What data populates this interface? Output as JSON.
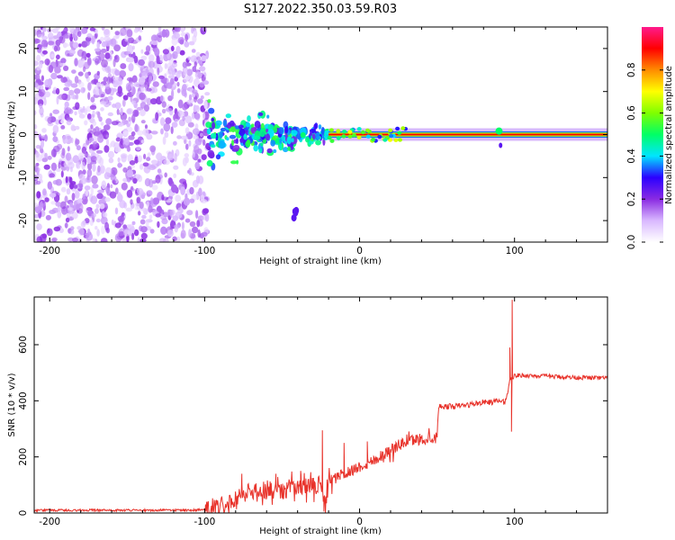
{
  "title": "S127.2022.350.03.59.R03",
  "chart_data": [
    {
      "type": "heatmap",
      "xlabel": "Height of straight line (km)",
      "ylabel": "Frequency (Hz)",
      "xlim": [
        -210,
        160
      ],
      "ylim": [
        -25,
        25
      ],
      "xticks": [
        -200,
        -100,
        0,
        100
      ],
      "yticks": [
        -20,
        -10,
        0,
        10,
        20
      ],
      "colorbar": {
        "label": "Normalized spectral amplitude",
        "range": [
          0.0,
          1.0
        ],
        "ticks": [
          0.0,
          0.2,
          0.4,
          0.6,
          0.8
        ],
        "colormap": [
          "#ffffff",
          "#d9b8ff",
          "#8a2be2",
          "#2b00ff",
          "#00e5ff",
          "#00ff66",
          "#7fff00",
          "#ffff00",
          "#ff8c00",
          "#ff0000",
          "#ff1a8c"
        ]
      },
      "features": [
        {
          "region": "noise",
          "x_range": [
            -210,
            -98
          ],
          "freq_range": [
            -25,
            25
          ],
          "amplitude": [
            0.05,
            0.2
          ]
        },
        {
          "region": "signal_onset",
          "x_range": [
            -98,
            -20
          ],
          "freq_center": 0,
          "spread_hz": 8,
          "amplitude": [
            0.2,
            0.55
          ]
        },
        {
          "region": "secondary_blob",
          "x": -42,
          "freq": -18.5,
          "amplitude": 0.2
        },
        {
          "region": "carrier",
          "x_range": [
            -20,
            160
          ],
          "freq_center": 0,
          "amplitude": [
            0.9,
            1.0
          ]
        },
        {
          "region": "carrier_wobble",
          "x": 90,
          "freq": 0.8,
          "amplitude": 0.5
        }
      ]
    },
    {
      "type": "line",
      "xlabel": "Height of straight line (km)",
      "ylabel": "SNR (10 * v/v)",
      "xlim": [
        -210,
        160
      ],
      "ylim": [
        0,
        770
      ],
      "xticks": [
        -200,
        -100,
        0,
        100
      ],
      "yticks": [
        0,
        200,
        400,
        600
      ],
      "color": "#e8322a",
      "series": [
        {
          "x": [
            -210,
            -150,
            -110,
            -100,
            -90,
            -80,
            -75,
            -70,
            -60,
            -50,
            -40,
            -30,
            -25,
            -22,
            -20,
            -10,
            0,
            10,
            20,
            30,
            40,
            50,
            51,
            60,
            70,
            80,
            85,
            90,
            93,
            95,
            97,
            98,
            99,
            100,
            110,
            130,
            160
          ],
          "y": [
            10,
            10,
            10,
            12,
            25,
            55,
            70,
            75,
            85,
            80,
            90,
            95,
            110,
            15,
            110,
            140,
            165,
            190,
            225,
            255,
            265,
            270,
            380,
            380,
            385,
            395,
            395,
            400,
            395,
            410,
            475,
            490,
            480,
            490,
            490,
            485,
            480
          ],
          "spikes": [
            {
              "x": -76,
              "y": 140
            },
            {
              "x": -54,
              "y": 140
            },
            {
              "x": -38,
              "y": 150
            },
            {
              "x": -24,
              "y": 295
            },
            {
              "x": -23,
              "y": 5
            },
            {
              "x": -10,
              "y": 250
            },
            {
              "x": 5,
              "y": 255
            },
            {
              "x": 97,
              "y": 590
            },
            {
              "x": 98.5,
              "y": 760
            },
            {
              "x": 98,
              "y": 290
            }
          ]
        }
      ]
    }
  ]
}
